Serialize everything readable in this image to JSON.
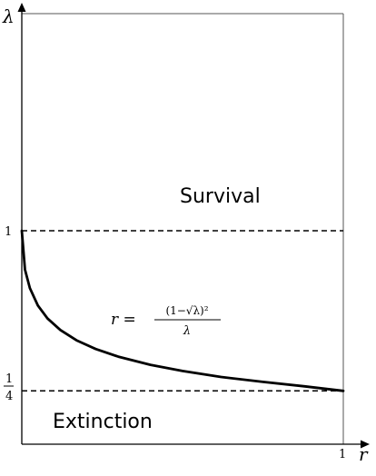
{
  "chart_data": {
    "type": "line",
    "xlabel": "r",
    "ylabel": "λ",
    "xlim": [
      0,
      1
    ],
    "ylim": [
      0,
      1.5
    ],
    "x_ticks": [
      {
        "value": 1,
        "label": "1"
      }
    ],
    "y_ticks": [
      {
        "value": 1,
        "label": "1"
      },
      {
        "value": 0.25,
        "label_num": "1",
        "label_den": "4"
      }
    ],
    "reference_lines": [
      {
        "axis": "y",
        "value": 1,
        "style": "dashed"
      },
      {
        "axis": "y",
        "value": 0.25,
        "style": "dashed"
      }
    ],
    "series": [
      {
        "x": [
          0,
          0.01,
          0.025,
          0.05,
          0.08,
          0.12,
          0.17,
          0.23,
          0.3,
          0.4,
          0.5,
          0.62,
          0.75,
          0.88,
          1.0
        ],
        "y": [
          1.0,
          0.818,
          0.731,
          0.65,
          0.589,
          0.535,
          0.487,
          0.446,
          0.41,
          0.372,
          0.343,
          0.315,
          0.292,
          0.271,
          0.25
        ]
      }
    ],
    "annotations": {
      "curve_label": {
        "lhs": "r =",
        "numerator": "(1−√λ)²",
        "denominator": "λ"
      },
      "upper_region": "Survival",
      "lower_region": "Extinction"
    },
    "grid": false,
    "legend": "none"
  }
}
